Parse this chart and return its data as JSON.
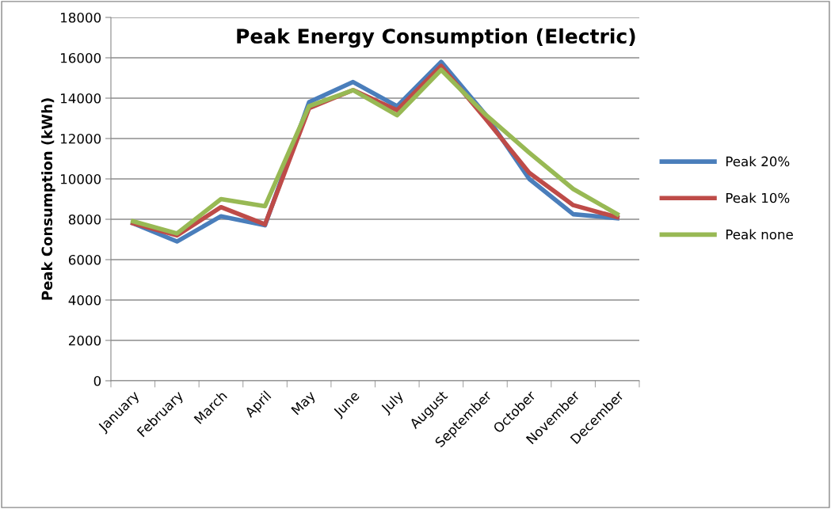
{
  "chart_data": {
    "type": "line",
    "title": "Peak Energy Consumption (Electric)",
    "ylabel": "Peak Consumption (kWh)",
    "categories": [
      "January",
      "February",
      "March",
      "April",
      "May",
      "June",
      "July",
      "August",
      "September",
      "October",
      "November",
      "December"
    ],
    "series": [
      {
        "name": "Peak 20%",
        "color": "#4a7ebb",
        "values": [
          7800,
          6900,
          8150,
          7700,
          13800,
          14800,
          13600,
          15800,
          13200,
          10000,
          8250,
          8050
        ]
      },
      {
        "name": "Peak 10%",
        "color": "#be4b48",
        "values": [
          7800,
          7200,
          8600,
          7750,
          13500,
          14400,
          13400,
          15600,
          13000,
          10300,
          8700,
          8100
        ]
      },
      {
        "name": "Peak none",
        "color": "#98b954",
        "values": [
          7900,
          7300,
          9000,
          8650,
          13600,
          14400,
          13150,
          15400,
          13200,
          11300,
          9500,
          8250
        ]
      }
    ],
    "ylim": [
      0,
      18000
    ],
    "yticks": [
      0,
      2000,
      4000,
      6000,
      8000,
      10000,
      12000,
      14000,
      16000,
      18000
    ],
    "grid": "y",
    "legend": "right",
    "marker": "none",
    "line_style": "solid"
  }
}
